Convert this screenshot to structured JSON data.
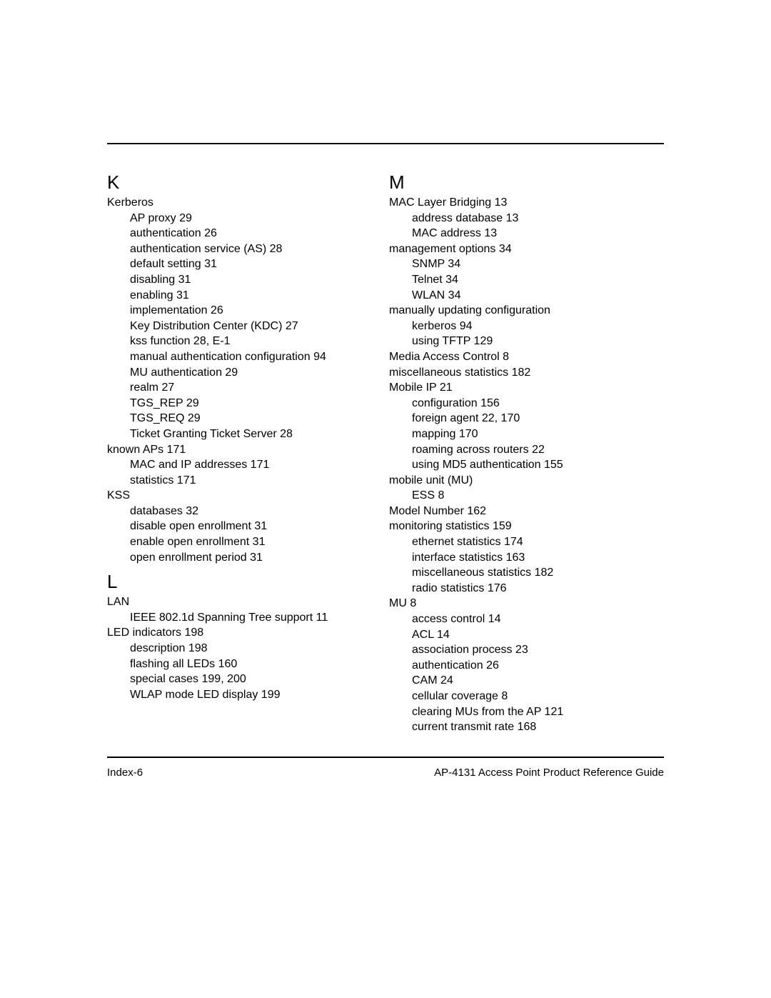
{
  "left": {
    "K": {
      "letter": "K",
      "entries": [
        {
          "t": "Kerberos",
          "sub": false
        },
        {
          "t": "AP proxy 29",
          "sub": true
        },
        {
          "t": "authentication 26",
          "sub": true
        },
        {
          "t": "authentication service (AS) 28",
          "sub": true
        },
        {
          "t": "default setting 31",
          "sub": true
        },
        {
          "t": "disabling 31",
          "sub": true
        },
        {
          "t": "enabling 31",
          "sub": true
        },
        {
          "t": "implementation 26",
          "sub": true
        },
        {
          "t": "Key Distribution Center (KDC) 27",
          "sub": true
        },
        {
          "t": "kss function 28, E-1",
          "sub": true
        },
        {
          "t": "manual authentication configuration 94",
          "sub": true
        },
        {
          "t": "MU authentication 29",
          "sub": true
        },
        {
          "t": "realm 27",
          "sub": true
        },
        {
          "t": "TGS_REP 29",
          "sub": true
        },
        {
          "t": "TGS_REQ 29",
          "sub": true
        },
        {
          "t": "Ticket Granting Ticket Server 28",
          "sub": true
        },
        {
          "t": "known APs 171",
          "sub": false
        },
        {
          "t": "MAC and IP addresses 171",
          "sub": true
        },
        {
          "t": "statistics 171",
          "sub": true
        },
        {
          "t": "KSS",
          "sub": false
        },
        {
          "t": "databases 32",
          "sub": true
        },
        {
          "t": "disable open enrollment 31",
          "sub": true
        },
        {
          "t": "enable open enrollment 31",
          "sub": true
        },
        {
          "t": "open enrollment period 31",
          "sub": true
        }
      ]
    },
    "L": {
      "letter": "L",
      "entries": [
        {
          "t": "LAN",
          "sub": false
        },
        {
          "t": "IEEE 802.1d Spanning Tree support 11",
          "sub": true
        },
        {
          "t": "LED indicators 198",
          "sub": false
        },
        {
          "t": "description 198",
          "sub": true
        },
        {
          "t": "flashing all LEDs 160",
          "sub": true
        },
        {
          "t": "special cases 199, 200",
          "sub": true
        },
        {
          "t": "WLAP mode LED display 199",
          "sub": true
        }
      ]
    }
  },
  "right": {
    "M": {
      "letter": "M",
      "entries": [
        {
          "t": "MAC Layer Bridging 13",
          "sub": false
        },
        {
          "t": "address database 13",
          "sub": true
        },
        {
          "t": "MAC address 13",
          "sub": true
        },
        {
          "t": "management options 34",
          "sub": false
        },
        {
          "t": "SNMP 34",
          "sub": true
        },
        {
          "t": "Telnet 34",
          "sub": true
        },
        {
          "t": "WLAN 34",
          "sub": true
        },
        {
          "t": "manually updating configuration",
          "sub": false
        },
        {
          "t": "kerberos 94",
          "sub": true
        },
        {
          "t": "using TFTP 129",
          "sub": true
        },
        {
          "t": "Media Access Control 8",
          "sub": false
        },
        {
          "t": "miscellaneous statistics 182",
          "sub": false
        },
        {
          "t": "Mobile IP 21",
          "sub": false
        },
        {
          "t": "configuration 156",
          "sub": true
        },
        {
          "t": "foreign agent 22, 170",
          "sub": true
        },
        {
          "t": "mapping 170",
          "sub": true
        },
        {
          "t": "roaming across routers 22",
          "sub": true
        },
        {
          "t": "using MD5 authentication 155",
          "sub": true
        },
        {
          "t": "mobile unit (MU)",
          "sub": false
        },
        {
          "t": "ESS 8",
          "sub": true
        },
        {
          "t": "Model Number 162",
          "sub": false
        },
        {
          "t": "monitoring statistics 159",
          "sub": false
        },
        {
          "t": "ethernet statistics 174",
          "sub": true
        },
        {
          "t": "interface statistics 163",
          "sub": true
        },
        {
          "t": "miscellaneous statistics 182",
          "sub": true
        },
        {
          "t": "radio statistics 176",
          "sub": true
        },
        {
          "t": "MU 8",
          "sub": false
        },
        {
          "t": "access control 14",
          "sub": true
        },
        {
          "t": "ACL 14",
          "sub": true
        },
        {
          "t": "association process 23",
          "sub": true
        },
        {
          "t": "authentication 26",
          "sub": true
        },
        {
          "t": "CAM 24",
          "sub": true
        },
        {
          "t": "cellular coverage 8",
          "sub": true
        },
        {
          "t": "clearing MUs from the AP 121",
          "sub": true
        },
        {
          "t": "current transmit rate 168",
          "sub": true
        }
      ]
    }
  },
  "footer": {
    "left": "Index-6",
    "right": "AP-4131 Access Point Product Reference Guide"
  }
}
